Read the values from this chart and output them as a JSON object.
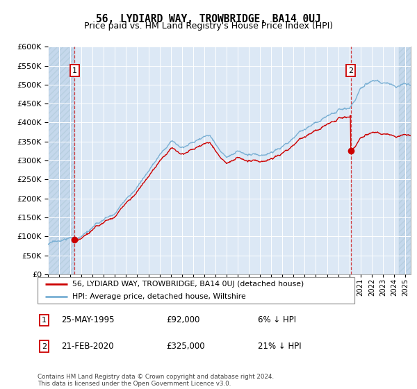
{
  "title": "56, LYDIARD WAY, TROWBRIDGE, BA14 0UJ",
  "subtitle": "Price paid vs. HM Land Registry's House Price Index (HPI)",
  "legend_line1": "56, LYDIARD WAY, TROWBRIDGE, BA14 0UJ (detached house)",
  "legend_line2": "HPI: Average price, detached house, Wiltshire",
  "annotation1_date": "25-MAY-1995",
  "annotation1_price": 92000,
  "annotation1_hpi_pct": "6% ↓ HPI",
  "annotation2_date": "21-FEB-2020",
  "annotation2_price": 325000,
  "annotation2_hpi_pct": "21% ↓ HPI",
  "footer": "Contains HM Land Registry data © Crown copyright and database right 2024.\nThis data is licensed under the Open Government Licence v3.0.",
  "ylim": [
    0,
    600000
  ],
  "ytick_step": 50000,
  "sale1_year": 1995.38,
  "sale2_year": 2020.13,
  "plot_color_red": "#cc0000",
  "plot_color_blue": "#7ab0d4",
  "background_plot": "#dce8f5",
  "background_hatch": "#c5d8ec",
  "grid_color": "#ffffff",
  "annotation_box_color": "#cc0000",
  "title_color": "#000000",
  "title_fontsize": 10.5,
  "subtitle_fontsize": 9,
  "x_min": 1993,
  "x_max": 2025.5,
  "hatch_right_start": 2024.42
}
